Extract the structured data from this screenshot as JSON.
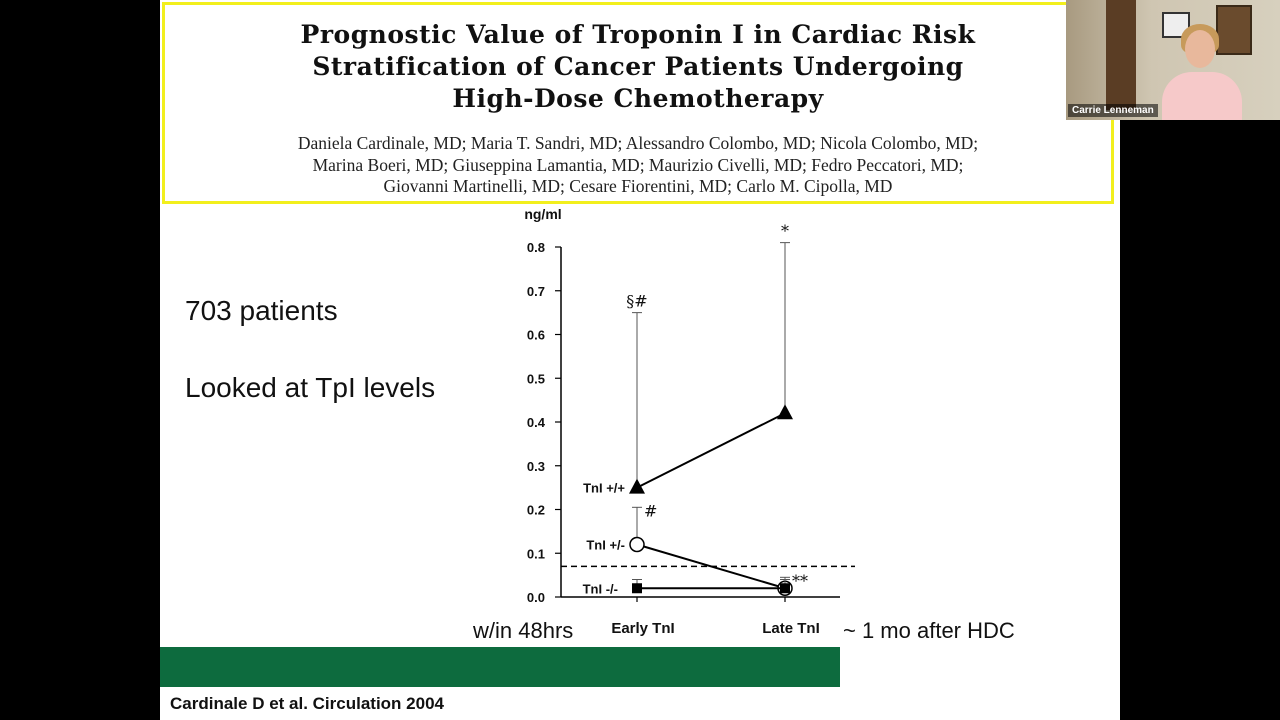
{
  "slide": {
    "title_lines": [
      "Prognostic Value of Troponin I in Cardiac Risk",
      "Stratification of Cancer Patients Undergoing",
      "High-Dose Chemotherapy"
    ],
    "author_lines": [
      "Daniela Cardinale, MD; Maria T. Sandri, MD; Alessandro Colombo, MD; Nicola Colombo, MD;",
      "Marina Boeri, MD; Giuseppina Lamantia, MD; Maurizio Civelli, MD; Fedro Peccatori, MD;",
      "Giovanni Martinelli, MD; Cesare Fiorentini, MD; Carlo M. Cipolla, MD"
    ],
    "bullets": [
      "703 patients",
      "Looked at TpI levels"
    ],
    "left_timing_label": "w/in 48hrs",
    "right_timing_label": "~ 1 mo after HDC",
    "citation": "Cardinale D et al. Circulation 2004",
    "colors": {
      "title_border": "#f2ef1d",
      "green_bar": "#0d6b3e"
    }
  },
  "webcam": {
    "participant_name": "Carrie Lenneman"
  },
  "chart_data": {
    "type": "line",
    "ylabel": "ng/ml",
    "ylim": [
      0,
      0.8
    ],
    "yticks": [
      "0.0",
      "0.1",
      "0.2",
      "0.3",
      "0.4",
      "0.5",
      "0.6",
      "0.7",
      "0.8"
    ],
    "categories": [
      "Early TnI",
      "Late TnI"
    ],
    "threshold": 0.07,
    "series": [
      {
        "name": "TnI +/+",
        "marker": "triangle-filled",
        "values": [
          0.25,
          0.42
        ],
        "upper": [
          0.65,
          0.81
        ],
        "annotations": [
          "§#",
          "*"
        ]
      },
      {
        "name": "TnI +/-",
        "marker": "circle-open",
        "values": [
          0.12,
          0.02
        ],
        "upper": [
          0.205,
          0.045
        ],
        "annotations": [
          "#",
          "**"
        ]
      },
      {
        "name": "TnI -/-",
        "marker": "square-filled",
        "values": [
          0.02,
          0.02
        ],
        "upper": [
          0.04,
          0.04
        ],
        "annotations": [
          "",
          ""
        ]
      }
    ]
  }
}
